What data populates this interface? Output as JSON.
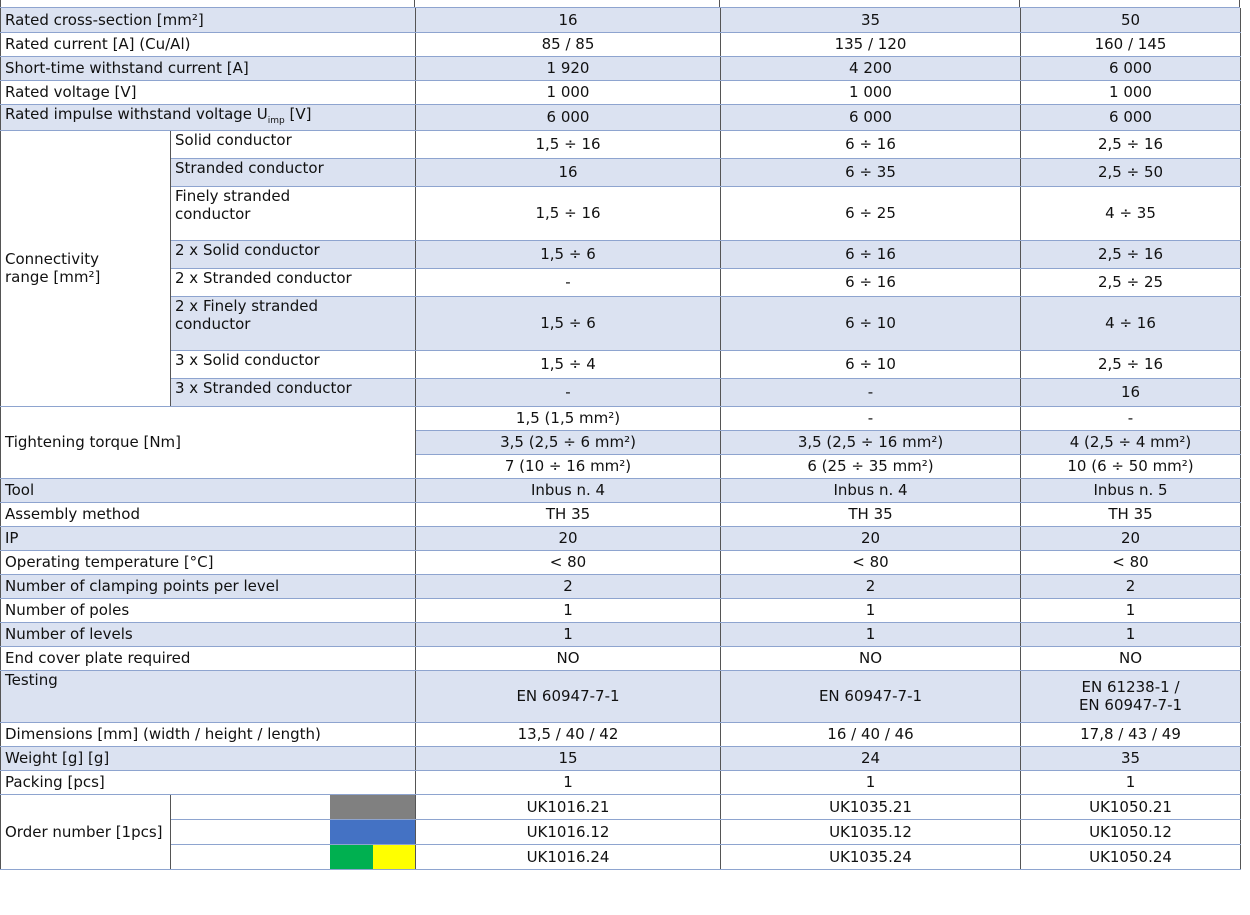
{
  "table": {
    "main_rows": [
      {
        "label": "Rated cross-section [mm²]",
        "values": [
          "16",
          "35",
          "50"
        ],
        "shaded": true
      },
      {
        "label": "Rated current [A] (Cu/Al)",
        "values": [
          "85 / 85",
          "135 / 120",
          "160 / 145"
        ],
        "shaded": false
      },
      {
        "label": "Short-time withstand current [A]",
        "values": [
          "1 920",
          "4 200",
          "6 000"
        ],
        "shaded": true
      },
      {
        "label": "Rated voltage [V]",
        "values": [
          "1 000",
          "1 000",
          "1 000"
        ],
        "shaded": false
      },
      {
        "label": "Rated impulse withstand voltage U",
        "label_sub": "imp",
        "label_end": " [V]",
        "values": [
          "6 000",
          "6 000",
          "6 000"
        ],
        "shaded": true
      }
    ],
    "connectivity": {
      "label": "Connectivity range [mm²]",
      "rows": [
        {
          "label": "Solid conductor",
          "values": [
            "1,5 ÷ 16",
            "6 ÷ 16",
            "2,5 ÷ 16"
          ],
          "shaded": false
        },
        {
          "label": "Stranded conductor",
          "values": [
            "16",
            "6 ÷ 35",
            "2,5 ÷ 50"
          ],
          "shaded": true
        },
        {
          "label": [
            "Finely stranded",
            "conductor"
          ],
          "values": [
            "1,5 ÷ 16",
            "6 ÷ 25",
            "4 ÷ 35"
          ],
          "shaded": false
        },
        {
          "label": "2 x Solid conductor",
          "values": [
            "1,5 ÷ 6",
            "6 ÷ 16",
            "2,5 ÷ 16"
          ],
          "shaded": true
        },
        {
          "label": "2 x Stranded conductor",
          "values": [
            "-",
            "6 ÷ 16",
            "2,5 ÷ 25"
          ],
          "shaded": false
        },
        {
          "label": [
            "2 x Finely stranded",
            "conductor"
          ],
          "values": [
            "1,5 ÷ 6",
            "6 ÷ 10",
            "4 ÷ 16"
          ],
          "shaded": true
        },
        {
          "label": "3 x Solid conductor",
          "values": [
            "1,5 ÷ 4",
            "6 ÷ 10",
            "2,5 ÷ 16"
          ],
          "shaded": false
        },
        {
          "label": "3 x Stranded conductor",
          "values": [
            "-",
            "-",
            "16"
          ],
          "shaded": true
        }
      ]
    },
    "tightening": {
      "label": "Tightening torque  [Nm]",
      "rows": [
        {
          "values": [
            "1,5 (1,5 mm²)",
            "-",
            "-"
          ],
          "shaded": false
        },
        {
          "values": [
            "3,5 (2,5 ÷ 6 mm²)",
            "3,5 (2,5 ÷ 16 mm²)",
            "4 (2,5 ÷ 4 mm²)"
          ],
          "shaded": true
        },
        {
          "values": [
            "7 (10 ÷ 16 mm²)",
            "6 (25 ÷ 35 mm²)",
            "10 (6 ÷ 50 mm²)"
          ],
          "shaded": false
        }
      ]
    },
    "other_rows": [
      {
        "label": "Tool",
        "values": [
          "Inbus n. 4",
          "Inbus n. 4",
          "Inbus n. 5"
        ],
        "shaded": true
      },
      {
        "label": "Assembly method",
        "values": [
          "TH 35",
          "TH 35",
          "TH 35"
        ],
        "shaded": false
      },
      {
        "label": "IP",
        "values": [
          "20",
          "20",
          "20"
        ],
        "shaded": true
      },
      {
        "label": "Operating temperature  [°C]",
        "values": [
          "< 80",
          "< 80",
          "< 80"
        ],
        "shaded": false
      },
      {
        "label": "Number of clamping points per level",
        "values": [
          "2",
          "2",
          "2"
        ],
        "shaded": true
      },
      {
        "label": "Number of poles",
        "values": [
          "1",
          "1",
          "1"
        ],
        "shaded": false
      },
      {
        "label": "Number of levels",
        "values": [
          "1",
          "1",
          "1"
        ],
        "shaded": true
      },
      {
        "label": "End cover plate required",
        "values": [
          "NO",
          "NO",
          "NO"
        ],
        "shaded": false
      },
      {
        "label": "Testing",
        "values": [
          "EN 60947-7-1",
          "EN 60947-7-1",
          [
            "EN 61238-1 /",
            "EN 60947-7-1"
          ]
        ],
        "shaded": true,
        "tall": true
      },
      {
        "label": "Dimensions [mm] (width / height / length)",
        "values": [
          "13,5 / 40 / 42",
          "16 / 40 / 46",
          "17,8 / 43 / 49"
        ],
        "shaded": false
      },
      {
        "label": "Weight [g] [g]",
        "values": [
          "15",
          "24",
          "35"
        ],
        "shaded": true
      },
      {
        "label": "Packing [pcs]",
        "values": [
          "1",
          "1",
          "1"
        ],
        "shaded": false
      }
    ],
    "order": {
      "label": "Order number [1pcs]",
      "rows": [
        {
          "colors": [
            "#808080"
          ],
          "values": [
            "UK1016.21",
            "UK1035.21",
            "UK1050.21"
          ]
        },
        {
          "colors": [
            "#4472c4"
          ],
          "values": [
            "UK1016.12",
            "UK1035.12",
            "UK1050.12"
          ]
        },
        {
          "colors": [
            "#00b050",
            "#ffff00"
          ],
          "values": [
            "UK1016.24",
            "UK1035.24",
            "UK1050.24"
          ]
        }
      ]
    }
  }
}
